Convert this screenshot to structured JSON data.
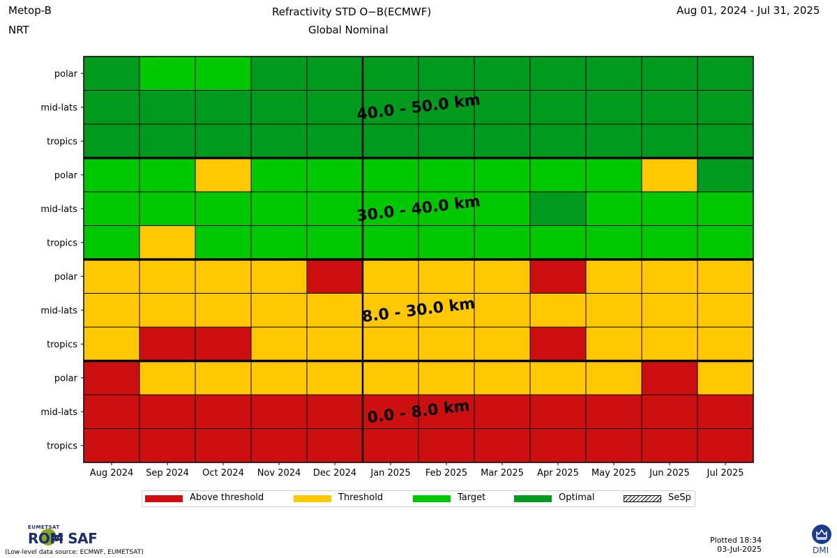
{
  "header": {
    "satellite": "Metop-B",
    "mode": "NRT",
    "title_line1": "Refractivity   STD O−B(ECMWF)",
    "title_line2": "Global   Nominal",
    "date_range": "Aug 01, 2024 - Jul 31, 2025"
  },
  "chart_data": {
    "type": "heatmap",
    "title": "Refractivity   STD O−B(ECMWF)",
    "months": [
      "Aug 2024",
      "Sep 2024",
      "Oct 2024",
      "Nov 2024",
      "Dec 2024",
      "Jan 2025",
      "Feb 2025",
      "Mar 2025",
      "Apr 2025",
      "May 2025",
      "Jun 2025",
      "Jul 2025"
    ],
    "row_labels": [
      "polar",
      "mid-lats",
      "tropics"
    ],
    "categories": [
      "Above threshold",
      "Threshold",
      "Target",
      "Optimal",
      "SeSp"
    ],
    "colors": {
      "Above threshold": "#cc0f0f",
      "Threshold": "#ffc800",
      "Target": "#00c800",
      "Optimal": "#009a1f"
    },
    "codes": {
      "A": "Above threshold",
      "T": "Threshold",
      "G": "Target",
      "O": "Optimal"
    },
    "year_divider_after": "Dec 2024",
    "bands": [
      {
        "label": "40.0 - 50.0 km",
        "rows": [
          {
            "region": "polar",
            "status": [
              "O",
              "G",
              "G",
              "O",
              "O",
              "O",
              "O",
              "O",
              "O",
              "O",
              "O",
              "O"
            ]
          },
          {
            "region": "mid-lats",
            "status": [
              "O",
              "O",
              "O",
              "O",
              "O",
              "O",
              "O",
              "O",
              "O",
              "O",
              "O",
              "O"
            ]
          },
          {
            "region": "tropics",
            "status": [
              "O",
              "O",
              "O",
              "O",
              "O",
              "O",
              "O",
              "O",
              "O",
              "O",
              "O",
              "O"
            ]
          }
        ]
      },
      {
        "label": "30.0 - 40.0 km",
        "rows": [
          {
            "region": "polar",
            "status": [
              "G",
              "G",
              "T",
              "G",
              "G",
              "G",
              "G",
              "G",
              "G",
              "G",
              "T",
              "O"
            ]
          },
          {
            "region": "mid-lats",
            "status": [
              "G",
              "G",
              "G",
              "G",
              "G",
              "G",
              "G",
              "G",
              "O",
              "G",
              "G",
              "G"
            ]
          },
          {
            "region": "tropics",
            "status": [
              "G",
              "T",
              "G",
              "G",
              "G",
              "G",
              "G",
              "G",
              "G",
              "G",
              "G",
              "G"
            ]
          }
        ]
      },
      {
        "label": "8.0 - 30.0 km",
        "rows": [
          {
            "region": "polar",
            "status": [
              "T",
              "T",
              "T",
              "T",
              "A",
              "T",
              "T",
              "T",
              "A",
              "T",
              "T",
              "T"
            ]
          },
          {
            "region": "mid-lats",
            "status": [
              "T",
              "T",
              "T",
              "T",
              "T",
              "T",
              "T",
              "T",
              "T",
              "T",
              "T",
              "T"
            ]
          },
          {
            "region": "tropics",
            "status": [
              "T",
              "A",
              "A",
              "T",
              "T",
              "T",
              "T",
              "T",
              "A",
              "T",
              "T",
              "T"
            ]
          }
        ]
      },
      {
        "label": "0.0 - 8.0 km",
        "rows": [
          {
            "region": "polar",
            "status": [
              "A",
              "T",
              "T",
              "T",
              "T",
              "T",
              "T",
              "T",
              "T",
              "T",
              "A",
              "T"
            ]
          },
          {
            "region": "mid-lats",
            "status": [
              "A",
              "A",
              "A",
              "A",
              "A",
              "A",
              "A",
              "A",
              "A",
              "A",
              "A",
              "A"
            ]
          },
          {
            "region": "tropics",
            "status": [
              "A",
              "A",
              "A",
              "A",
              "A",
              "A",
              "A",
              "A",
              "A",
              "A",
              "A",
              "A"
            ]
          }
        ]
      }
    ]
  },
  "legend": [
    {
      "label": "Above threshold",
      "color": "#cc0f0f"
    },
    {
      "label": "Threshold",
      "color": "#ffc800"
    },
    {
      "label": "Target",
      "color": "#00c800"
    },
    {
      "label": "Optimal",
      "color": "#009a1f"
    },
    {
      "label": "SeSp",
      "color": "hatched"
    }
  ],
  "footer": {
    "org": "EUMETSAT",
    "brand": "ROM SAF",
    "source_note": "(Low-level data source: ECMWF, EUMETSAT)",
    "plotted_line1": "Plotted 18:34",
    "plotted_line2": "03-Jul-2025",
    "dmi": "DMI"
  }
}
